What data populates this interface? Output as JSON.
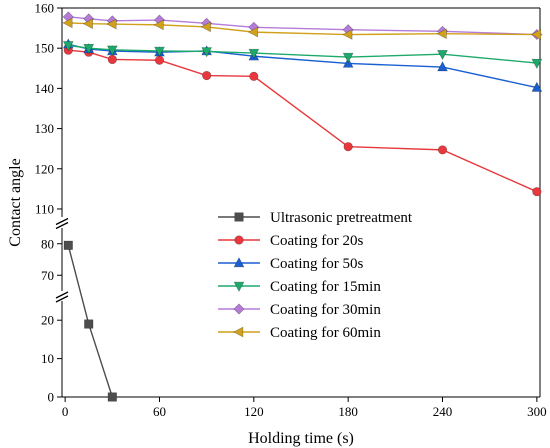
{
  "chart_data": {
    "type": "line",
    "xlabel": "Holding time (s)",
    "ylabel": "Contact angle",
    "x_ticks": [
      0,
      60,
      120,
      180,
      240,
      300
    ],
    "xlim": [
      -2,
      302
    ],
    "y_segments": [
      {
        "range": [
          0,
          25
        ],
        "ticks": [
          0,
          10,
          20
        ]
      },
      {
        "range": [
          65,
          85
        ],
        "ticks": [
          70,
          80
        ]
      },
      {
        "range": [
          108,
          160
        ],
        "ticks": [
          110,
          120,
          130,
          140,
          150,
          160
        ]
      }
    ],
    "axis_breaks": [
      25,
      85
    ],
    "legend_position": "center-right",
    "series": [
      {
        "name": "Ultrasonic pretreatment",
        "color": "#4d4d4d",
        "marker": "square",
        "x": [
          2,
          15,
          30
        ],
        "y": [
          79.5,
          19,
          0
        ]
      },
      {
        "name": "Coating for 20s",
        "color": "#e8383d",
        "marker": "circle",
        "x": [
          2,
          15,
          30,
          60,
          90,
          120,
          180,
          240,
          300
        ],
        "y": [
          149.5,
          149,
          147.2,
          147,
          143.2,
          143,
          125.5,
          124.7,
          114.3
        ]
      },
      {
        "name": "Coating for 50s",
        "color": "#1a5fd1",
        "marker": "triangle-up",
        "x": [
          2,
          15,
          30,
          60,
          90,
          120,
          180,
          240,
          300
        ],
        "y": [
          151,
          149.8,
          149.3,
          149,
          149.3,
          148,
          146.2,
          145.3,
          140.2
        ]
      },
      {
        "name": "Coating for 15min",
        "color": "#1ea96b",
        "marker": "triangle-down",
        "x": [
          2,
          15,
          30,
          60,
          90,
          120,
          180,
          240,
          300
        ],
        "y": [
          150.7,
          150,
          149.6,
          149.3,
          149.2,
          148.8,
          147.8,
          148.5,
          146.3
        ]
      },
      {
        "name": "Coating for 30min",
        "color": "#b57bd9",
        "marker": "diamond",
        "x": [
          2,
          15,
          30,
          60,
          90,
          120,
          180,
          240,
          300
        ],
        "y": [
          157.8,
          157.3,
          156.8,
          157,
          156.2,
          155.2,
          154.6,
          154.2,
          153.4
        ]
      },
      {
        "name": "Coating for 60min",
        "color": "#d1a11c",
        "marker": "triangle-left",
        "x": [
          2,
          15,
          30,
          60,
          90,
          120,
          180,
          240,
          300
        ],
        "y": [
          156.3,
          156.1,
          156,
          155.8,
          155.3,
          154,
          153.4,
          153.6,
          153.4
        ]
      }
    ]
  }
}
